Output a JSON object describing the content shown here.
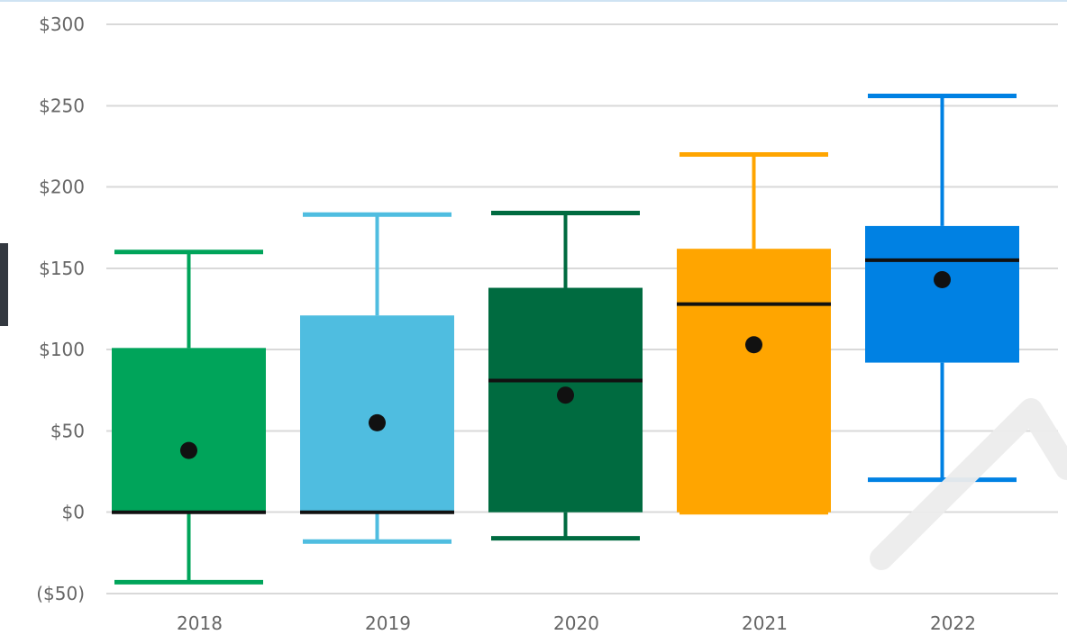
{
  "chart_data": {
    "type": "boxplot",
    "title": "",
    "xlabel": "",
    "ylabel": "",
    "categories": [
      "2018",
      "2019",
      "2020",
      "2021",
      "2022"
    ],
    "ylim": [
      -50,
      300
    ],
    "y_ticks": [
      -50,
      0,
      50,
      100,
      150,
      200,
      250,
      300
    ],
    "y_tick_labels": [
      "($50)",
      "$0",
      "$50",
      "$100",
      "$150",
      "$200",
      "$250",
      "$300"
    ],
    "grid": true,
    "legend": "none",
    "series": [
      {
        "category": "2018",
        "color": "#00a45a",
        "whisker_low": -43,
        "q1": 0,
        "median": 0,
        "q3": 101,
        "whisker_high": 160,
        "mean": 38
      },
      {
        "category": "2019",
        "color": "#4fbde0",
        "whisker_low": -18,
        "q1": 0,
        "median": 0,
        "q3": 121,
        "whisker_high": 183,
        "mean": 55
      },
      {
        "category": "2020",
        "color": "#006b40",
        "whisker_low": -16,
        "q1": 0,
        "median": 81,
        "q3": 138,
        "whisker_high": 184,
        "mean": 72
      },
      {
        "category": "2021",
        "color": "#ffa500",
        "whisker_low": 0,
        "q1": 0,
        "median": 128,
        "q3": 162,
        "whisker_high": 220,
        "mean": 103
      },
      {
        "category": "2022",
        "color": "#0081e3",
        "whisker_low": 20,
        "q1": 92,
        "median": 155,
        "q3": 176,
        "whisker_high": 256,
        "mean": 143
      }
    ]
  }
}
